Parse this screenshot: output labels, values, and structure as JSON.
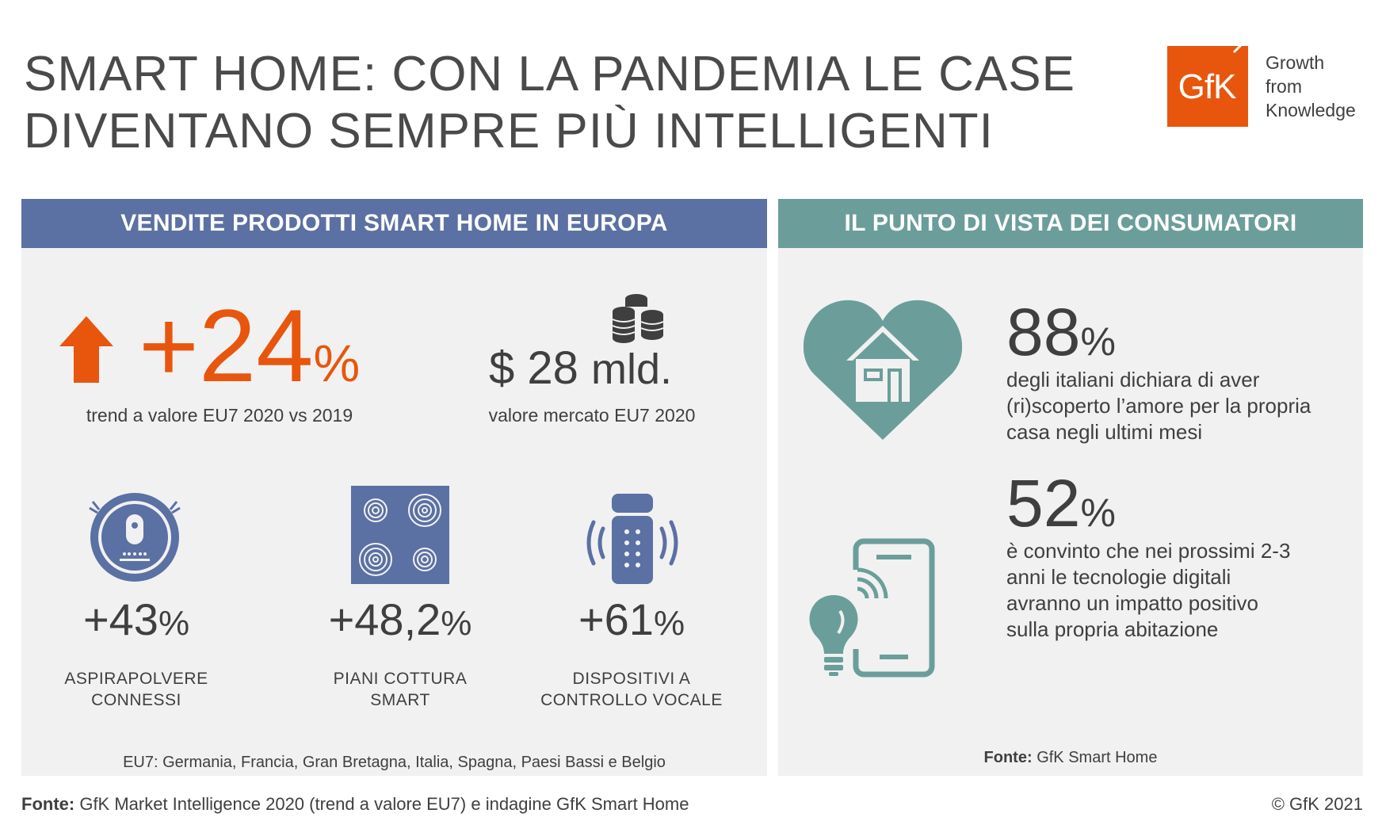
{
  "header": {
    "title_line1": "SMART HOME: CON LA PANDEMIA LE CASE",
    "title_line2": "DIVENTANO SEMPRE PIÙ INTELLIGENTI"
  },
  "logo": {
    "mark_text": "GfK",
    "tagline_line1": "Growth",
    "tagline_line2": "from",
    "tagline_line3": "Knowledge",
    "color": "#e8560d"
  },
  "left_panel": {
    "title": "VENDITE PRODOTTI SMART HOME IN EUROPA",
    "color": "#5b70a3",
    "trend": {
      "value": "+24",
      "unit": "%",
      "caption": "trend a valore EU7 2020 vs 2019",
      "icon": "arrow-up-icon"
    },
    "market": {
      "value": "$ 28",
      "unit": "mld.",
      "caption": "valore mercato EU7 2020",
      "icon": "coins-icon"
    },
    "categories": [
      {
        "value": "+43",
        "unit": "%",
        "label_line1": "ASPIRAPOLVERE",
        "label_line2": "CONNESSI",
        "icon": "robot-vacuum-icon"
      },
      {
        "value": "+48,2",
        "unit": "%",
        "label_line1": "PIANI COTTURA",
        "label_line2": "SMART",
        "icon": "cooktop-icon"
      },
      {
        "value": "+61",
        "unit": "%",
        "label_line1": "DISPOSITIVI A",
        "label_line2": "CONTROLLO VOCALE",
        "icon": "smart-speaker-icon"
      }
    ],
    "footnote": "EU7: Germania, Francia, Gran Bretagna, Italia, Spagna, Paesi Bassi e Belgio"
  },
  "right_panel": {
    "title": "IL PUNTO DI VISTA DEI CONSUMATORI",
    "color": "#6b9e9a",
    "stats": [
      {
        "value": "88",
        "unit": "%",
        "text_line1": "degli italiani dichiara di aver",
        "text_line2": "(ri)scoperto l’amore per la propria",
        "text_line3": "casa negli ultimi mesi",
        "icon": "heart-house-icon"
      },
      {
        "value": "52",
        "unit": "%",
        "text_line1": "è convinto che nei prossimi 2-3",
        "text_line2": "anni le tecnologie digitali",
        "text_line3": "avranno un impatto positivo",
        "text_line4": "sulla propria abitazione",
        "icon": "phone-bulb-icon"
      }
    ],
    "source_label": "Fonte:",
    "source_text": "GfK Smart Home"
  },
  "footer": {
    "source_label": "Fonte:",
    "source_text": "GfK Market Intelligence 2020 (trend a valore EU7) e indagine GfK Smart Home",
    "copyright": "© GfK 2021"
  }
}
